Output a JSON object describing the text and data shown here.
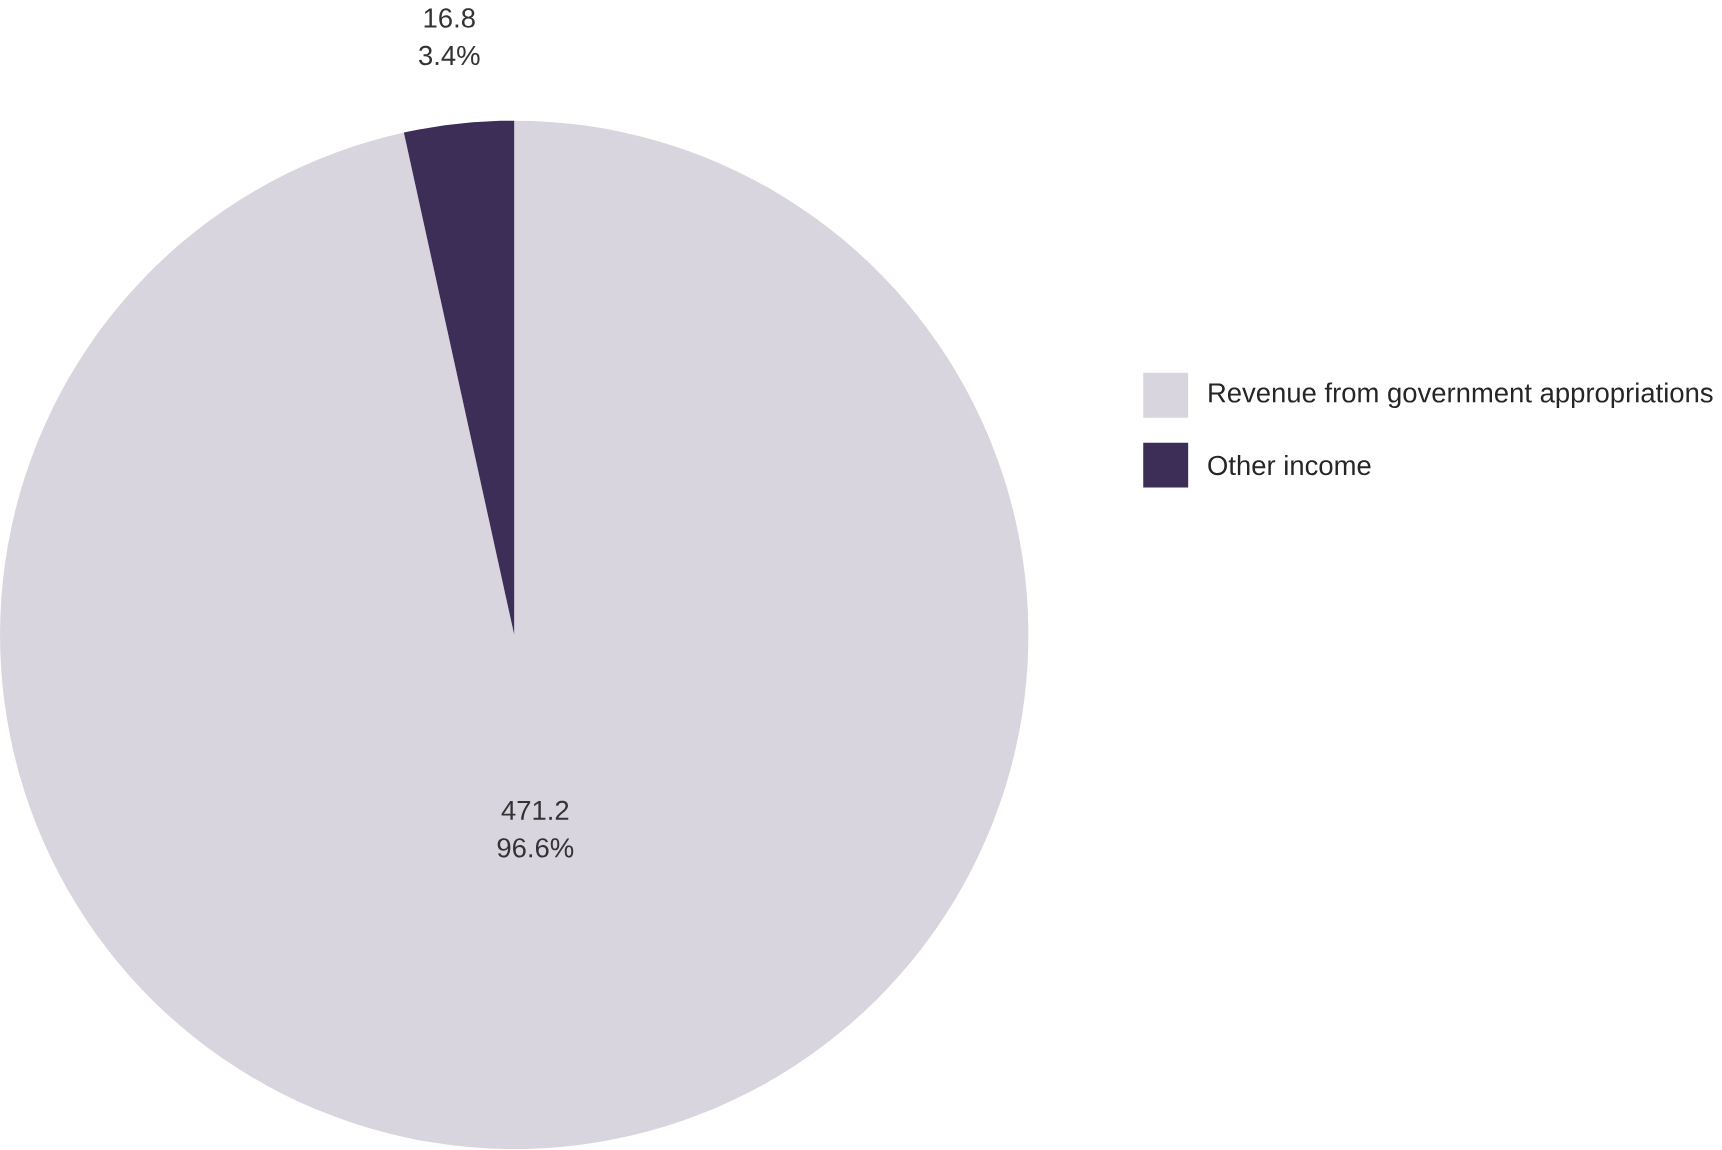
{
  "chart_data": {
    "type": "pie",
    "categories": [
      "Revenue from government appropriations",
      "Other income"
    ],
    "values": [
      471.2,
      16.8
    ],
    "value_labels": [
      "471.2",
      "16.8"
    ],
    "annotations": [
      "96.6%",
      "3.4%"
    ],
    "colors": [
      "#d9d5de",
      "#3c2e57"
    ],
    "legend": "right"
  }
}
